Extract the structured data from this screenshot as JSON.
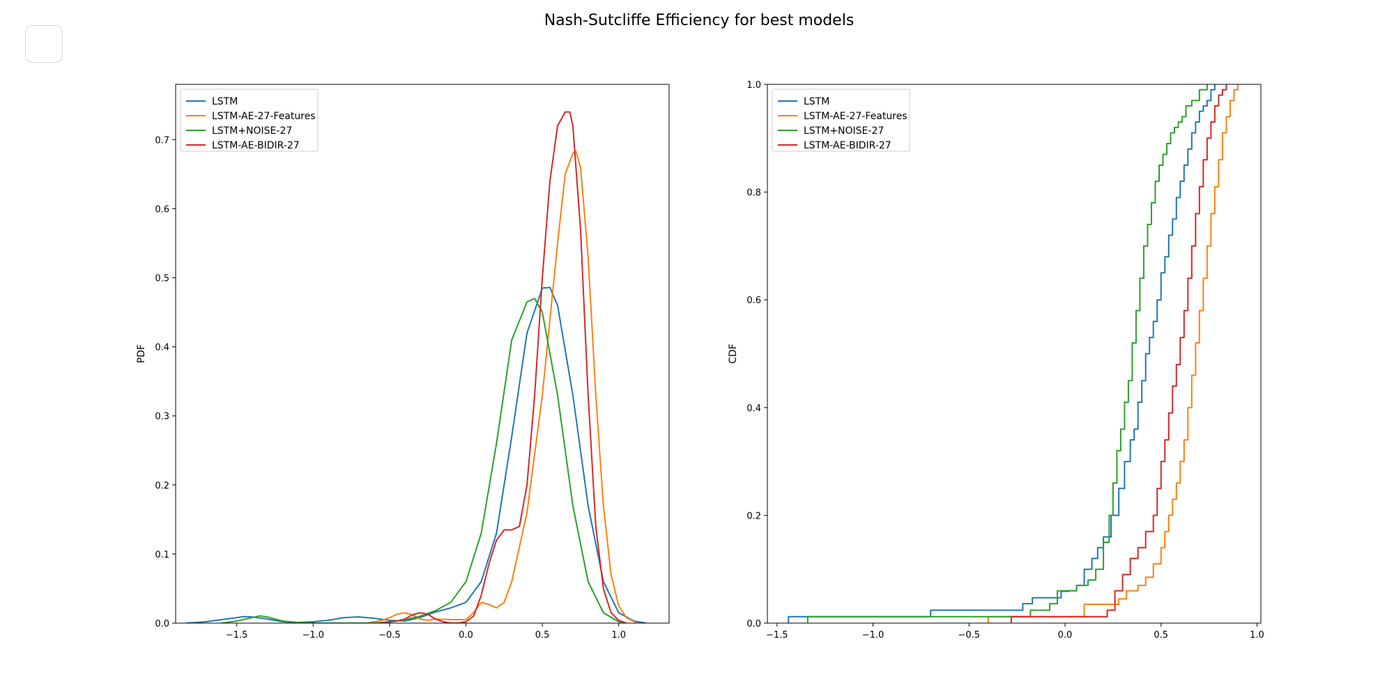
{
  "title": "Nash-Sutcliffe Efficiency for best models",
  "colors": {
    "LSTM": "#1f77b4",
    "LSTM-AE-27-Features": "#ff7f0e",
    "LSTM+NOISE-27": "#2ca02c",
    "LSTM-AE-BIDIR-27": "#d62728"
  },
  "chart_data": [
    {
      "type": "line",
      "ylabel": "PDF",
      "xlabel": "",
      "xlim": [
        -1.9,
        1.33
      ],
      "ylim": [
        0,
        0.78
      ],
      "xticks": [
        -1.5,
        -1.0,
        -0.5,
        0.0,
        0.5,
        1.0
      ],
      "xtick_labels": [
        "−1.5",
        "−1.0",
        "−0.5",
        "0.0",
        "0.5",
        "1.0"
      ],
      "yticks": [
        0.0,
        0.1,
        0.2,
        0.3,
        0.4,
        0.5,
        0.6,
        0.7
      ],
      "ytick_labels": [
        "0.0",
        "0.1",
        "0.2",
        "0.3",
        "0.4",
        "0.5",
        "0.6",
        "0.7"
      ],
      "legend_position": "top-left",
      "series": [
        {
          "name": "LSTM",
          "color": "#1f77b4",
          "x": [
            -1.83,
            -1.7,
            -1.6,
            -1.5,
            -1.45,
            -1.4,
            -1.3,
            -1.2,
            -1.1,
            -1.0,
            -0.9,
            -0.8,
            -0.7,
            -0.6,
            -0.5,
            -0.4,
            -0.3,
            -0.2,
            -0.1,
            0.0,
            0.1,
            0.2,
            0.3,
            0.4,
            0.5,
            0.55,
            0.6,
            0.7,
            0.8,
            0.9,
            1.0,
            1.1,
            1.18
          ],
          "y": [
            0.0,
            0.002,
            0.005,
            0.008,
            0.0095,
            0.009,
            0.006,
            0.002,
            0.001,
            0.002,
            0.004,
            0.008,
            0.009,
            0.007,
            0.004,
            0.003,
            0.008,
            0.016,
            0.022,
            0.03,
            0.06,
            0.13,
            0.27,
            0.42,
            0.485,
            0.486,
            0.46,
            0.33,
            0.17,
            0.06,
            0.015,
            0.003,
            0.0
          ]
        },
        {
          "name": "LSTM-AE-27-Features",
          "color": "#ff7f0e",
          "x": [
            -0.65,
            -0.55,
            -0.5,
            -0.45,
            -0.4,
            -0.35,
            -0.3,
            -0.25,
            -0.2,
            -0.1,
            0.0,
            0.05,
            0.1,
            0.15,
            0.2,
            0.25,
            0.3,
            0.4,
            0.5,
            0.6,
            0.65,
            0.7,
            0.72,
            0.75,
            0.8,
            0.85,
            0.9,
            0.95,
            1.0,
            1.05,
            1.12
          ],
          "y": [
            0.0,
            0.004,
            0.008,
            0.013,
            0.015,
            0.012,
            0.006,
            0.004,
            0.006,
            0.005,
            0.005,
            0.015,
            0.03,
            0.027,
            0.022,
            0.03,
            0.06,
            0.16,
            0.33,
            0.55,
            0.65,
            0.68,
            0.683,
            0.66,
            0.53,
            0.33,
            0.17,
            0.07,
            0.025,
            0.008,
            0.0
          ]
        },
        {
          "name": "LSTM+NOISE-27",
          "color": "#2ca02c",
          "x": [
            -1.6,
            -1.5,
            -1.4,
            -1.35,
            -1.3,
            -1.2,
            -1.1,
            -1.0,
            -0.9,
            -0.8,
            -0.7,
            -0.6,
            -0.5,
            -0.4,
            -0.3,
            -0.2,
            -0.1,
            0.0,
            0.1,
            0.2,
            0.3,
            0.4,
            0.45,
            0.5,
            0.6,
            0.7,
            0.8,
            0.9,
            1.0,
            1.05
          ],
          "y": [
            0.0,
            0.003,
            0.008,
            0.0105,
            0.009,
            0.003,
            0.001,
            0.0,
            0.0,
            0.0,
            0.0,
            0.0,
            0.002,
            0.005,
            0.01,
            0.018,
            0.03,
            0.06,
            0.13,
            0.26,
            0.41,
            0.465,
            0.47,
            0.45,
            0.33,
            0.17,
            0.06,
            0.015,
            0.002,
            0.0
          ]
        },
        {
          "name": "LSTM-AE-BIDIR-27",
          "color": "#d62728",
          "x": [
            -0.55,
            -0.45,
            -0.4,
            -0.35,
            -0.3,
            -0.25,
            -0.2,
            -0.15,
            -0.1,
            -0.05,
            0.0,
            0.05,
            0.1,
            0.15,
            0.2,
            0.25,
            0.3,
            0.35,
            0.4,
            0.45,
            0.5,
            0.55,
            0.6,
            0.65,
            0.68,
            0.7,
            0.75,
            0.8,
            0.85,
            0.9,
            0.95,
            1.0,
            1.05
          ],
          "y": [
            0.0,
            0.003,
            0.006,
            0.012,
            0.015,
            0.013,
            0.006,
            0.002,
            0.0,
            0.0,
            0.002,
            0.01,
            0.04,
            0.085,
            0.12,
            0.135,
            0.135,
            0.14,
            0.2,
            0.33,
            0.5,
            0.64,
            0.72,
            0.74,
            0.74,
            0.72,
            0.57,
            0.33,
            0.14,
            0.05,
            0.015,
            0.004,
            0.0
          ]
        }
      ]
    },
    {
      "type": "line",
      "ylabel": "CDF",
      "xlabel": "",
      "xlim": [
        -1.55,
        1.02
      ],
      "ylim": [
        0,
        1.0
      ],
      "xticks": [
        -1.5,
        -1.0,
        -0.5,
        0.0,
        0.5,
        1.0
      ],
      "xtick_labels": [
        "−1.5",
        "−1.0",
        "−0.5",
        "0.0",
        "0.5",
        "1.0"
      ],
      "yticks": [
        0.0,
        0.2,
        0.4,
        0.6,
        0.8,
        1.0
      ],
      "ytick_labels": [
        "0.0",
        "0.2",
        "0.4",
        "0.6",
        "0.8",
        "1.0"
      ],
      "legend_position": "top-left",
      "step": true,
      "series": [
        {
          "name": "LSTM",
          "color": "#1f77b4",
          "x": [
            -1.44,
            -0.7,
            -0.22,
            -0.17,
            -0.07,
            -0.02,
            0.02,
            0.06,
            0.1,
            0.14,
            0.17,
            0.2,
            0.24,
            0.28,
            0.31,
            0.34,
            0.36,
            0.38,
            0.4,
            0.42,
            0.44,
            0.46,
            0.48,
            0.5,
            0.52,
            0.54,
            0.56,
            0.58,
            0.6,
            0.62,
            0.64,
            0.66,
            0.68,
            0.7,
            0.72,
            0.74,
            0.76,
            0.78
          ],
          "y": [
            0.012,
            0.024,
            0.036,
            0.047,
            0.047,
            0.059,
            0.06,
            0.07,
            0.1,
            0.12,
            0.14,
            0.16,
            0.2,
            0.25,
            0.3,
            0.34,
            0.36,
            0.41,
            0.45,
            0.5,
            0.53,
            0.56,
            0.6,
            0.65,
            0.68,
            0.72,
            0.75,
            0.79,
            0.82,
            0.85,
            0.88,
            0.91,
            0.93,
            0.95,
            0.96,
            0.97,
            0.99,
            1.0
          ]
        },
        {
          "name": "LSTM-AE-27-Features",
          "color": "#ff7f0e",
          "x": [
            -0.4,
            0.1,
            0.16,
            0.2,
            0.24,
            0.28,
            0.32,
            0.38,
            0.42,
            0.46,
            0.5,
            0.52,
            0.54,
            0.56,
            0.58,
            0.6,
            0.62,
            0.64,
            0.66,
            0.68,
            0.7,
            0.72,
            0.74,
            0.76,
            0.78,
            0.8,
            0.82,
            0.84,
            0.86,
            0.88,
            0.9
          ],
          "y": [
            0.012,
            0.035,
            0.035,
            0.035,
            0.035,
            0.045,
            0.06,
            0.07,
            0.085,
            0.11,
            0.14,
            0.17,
            0.2,
            0.23,
            0.26,
            0.3,
            0.34,
            0.4,
            0.46,
            0.52,
            0.58,
            0.64,
            0.7,
            0.76,
            0.81,
            0.86,
            0.91,
            0.94,
            0.97,
            0.99,
            1.0
          ]
        },
        {
          "name": "LSTM+NOISE-27",
          "color": "#2ca02c",
          "x": [
            -1.34,
            -0.18,
            -0.08,
            -0.04,
            0.06,
            0.12,
            0.16,
            0.2,
            0.23,
            0.25,
            0.27,
            0.29,
            0.31,
            0.33,
            0.35,
            0.37,
            0.39,
            0.41,
            0.43,
            0.45,
            0.47,
            0.49,
            0.51,
            0.53,
            0.55,
            0.57,
            0.59,
            0.61,
            0.63,
            0.66,
            0.7,
            0.74
          ],
          "y": [
            0.012,
            0.024,
            0.036,
            0.06,
            0.07,
            0.08,
            0.1,
            0.15,
            0.2,
            0.26,
            0.32,
            0.36,
            0.41,
            0.45,
            0.52,
            0.58,
            0.64,
            0.7,
            0.74,
            0.78,
            0.82,
            0.85,
            0.87,
            0.89,
            0.91,
            0.92,
            0.93,
            0.94,
            0.96,
            0.97,
            0.99,
            1.0
          ]
        },
        {
          "name": "LSTM-AE-BIDIR-27",
          "color": "#d62728",
          "x": [
            -0.28,
            0.1,
            0.22,
            0.26,
            0.3,
            0.34,
            0.38,
            0.42,
            0.46,
            0.48,
            0.5,
            0.52,
            0.54,
            0.56,
            0.58,
            0.6,
            0.62,
            0.64,
            0.66,
            0.68,
            0.7,
            0.72,
            0.74,
            0.76,
            0.78,
            0.8,
            0.82,
            0.84
          ],
          "y": [
            0.012,
            0.012,
            0.024,
            0.06,
            0.09,
            0.12,
            0.14,
            0.17,
            0.2,
            0.25,
            0.3,
            0.34,
            0.39,
            0.44,
            0.48,
            0.53,
            0.58,
            0.64,
            0.7,
            0.76,
            0.81,
            0.86,
            0.9,
            0.93,
            0.96,
            0.98,
            0.99,
            1.0
          ]
        }
      ]
    }
  ]
}
